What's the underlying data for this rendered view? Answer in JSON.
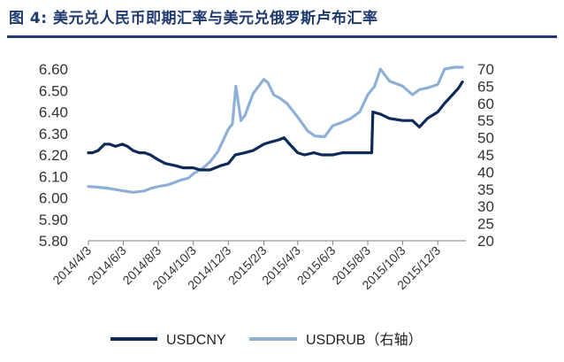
{
  "header": {
    "title": "图 4: 美元兑人民币即期汇率与美元兑俄罗斯卢布汇率"
  },
  "colors": {
    "title": "#1f3a6e",
    "usdcny": "#0e2a59",
    "usdrub": "#8fb0d6"
  },
  "chart_data": {
    "type": "line",
    "title": "",
    "xlabel": "",
    "ylabel": "",
    "y_left": {
      "min": 5.8,
      "max": 6.6,
      "ticks": [
        "5.80",
        "5.90",
        "6.00",
        "6.10",
        "6.20",
        "6.30",
        "6.40",
        "6.50",
        "6.60"
      ]
    },
    "y_right": {
      "min": 20,
      "max": 70,
      "ticks": [
        "20",
        "25",
        "30",
        "35",
        "40",
        "45",
        "50",
        "55",
        "60",
        "65",
        "70"
      ]
    },
    "x_ticks": [
      "2014/4/3",
      "2014/6/3",
      "2014/8/3",
      "2014/10/3",
      "2014/12/3",
      "2015/2/3",
      "2015/4/3",
      "2015/6/3",
      "2015/8/3",
      "2015/10/3",
      "2015/12/3"
    ],
    "legend_position": "bottom",
    "grid": false,
    "series": [
      {
        "name": "USDCNY",
        "axis": "left",
        "points": [
          [
            "2014/4/3",
            6.21
          ],
          [
            "2014/4/10",
            6.21
          ],
          [
            "2014/4/20",
            6.22
          ],
          [
            "2014/5/1",
            6.25
          ],
          [
            "2014/5/10",
            6.25
          ],
          [
            "2014/5/20",
            6.24
          ],
          [
            "2014/6/1",
            6.25
          ],
          [
            "2014/6/10",
            6.24
          ],
          [
            "2014/6/20",
            6.22
          ],
          [
            "2014/7/1",
            6.21
          ],
          [
            "2014/7/10",
            6.21
          ],
          [
            "2014/7/20",
            6.2
          ],
          [
            "2014/8/1",
            6.18
          ],
          [
            "2014/8/15",
            6.16
          ],
          [
            "2014/9/1",
            6.15
          ],
          [
            "2014/9/15",
            6.14
          ],
          [
            "2014/10/3",
            6.14
          ],
          [
            "2014/10/15",
            6.13
          ],
          [
            "2014/11/1",
            6.13
          ],
          [
            "2014/11/10",
            6.14
          ],
          [
            "2014/11/20",
            6.15
          ],
          [
            "2014/12/3",
            6.16
          ],
          [
            "2014/12/15",
            6.2
          ],
          [
            "2015/1/1",
            6.21
          ],
          [
            "2015/1/15",
            6.22
          ],
          [
            "2015/2/3",
            6.25
          ],
          [
            "2015/2/15",
            6.26
          ],
          [
            "2015/3/1",
            6.27
          ],
          [
            "2015/3/10",
            6.28
          ],
          [
            "2015/3/20",
            6.25
          ],
          [
            "2015/4/3",
            6.21
          ],
          [
            "2015/4/15",
            6.2
          ],
          [
            "2015/5/1",
            6.21
          ],
          [
            "2015/5/15",
            6.2
          ],
          [
            "2015/6/3",
            6.2
          ],
          [
            "2015/6/20",
            6.21
          ],
          [
            "2015/7/3",
            6.21
          ],
          [
            "2015/7/20",
            6.21
          ],
          [
            "2015/8/3",
            6.21
          ],
          [
            "2015/8/10",
            6.21
          ],
          [
            "2015/8/12",
            6.4
          ],
          [
            "2015/8/25",
            6.39
          ],
          [
            "2015/9/10",
            6.37
          ],
          [
            "2015/10/3",
            6.36
          ],
          [
            "2015/10/20",
            6.36
          ],
          [
            "2015/11/1",
            6.33
          ],
          [
            "2015/11/15",
            6.37
          ],
          [
            "2015/12/3",
            6.4
          ],
          [
            "2015/12/15",
            6.44
          ],
          [
            "2016/1/1",
            6.49
          ],
          [
            "2016/1/8",
            6.51
          ],
          [
            "2016/1/15",
            6.54
          ]
        ]
      },
      {
        "name": "USDRUB（右轴）",
        "axis": "right",
        "points": [
          [
            "2014/4/3",
            35.8
          ],
          [
            "2014/4/20",
            35.6
          ],
          [
            "2014/5/10",
            35.2
          ],
          [
            "2014/6/3",
            34.5
          ],
          [
            "2014/6/20",
            34.1
          ],
          [
            "2014/7/10",
            34.5
          ],
          [
            "2014/7/20",
            35.2
          ],
          [
            "2014/8/3",
            35.8
          ],
          [
            "2014/8/20",
            36.3
          ],
          [
            "2014/9/10",
            37.6
          ],
          [
            "2014/9/25",
            38.3
          ],
          [
            "2014/10/3",
            39.5
          ],
          [
            "2014/10/20",
            41.2
          ],
          [
            "2014/11/1",
            43.0
          ],
          [
            "2014/11/15",
            46.0
          ],
          [
            "2014/12/3",
            52.5
          ],
          [
            "2014/12/10",
            54.0
          ],
          [
            "2014/12/16",
            65.0
          ],
          [
            "2014/12/25",
            55.0
          ],
          [
            "2015/1/1",
            56.5
          ],
          [
            "2015/1/15",
            62.8
          ],
          [
            "2015/2/3",
            67.0
          ],
          [
            "2015/2/10",
            66.0
          ],
          [
            "2015/2/20",
            62.5
          ],
          [
            "2015/3/3",
            61.5
          ],
          [
            "2015/3/15",
            60.0
          ],
          [
            "2015/4/3",
            56.0
          ],
          [
            "2015/4/20",
            52.0
          ],
          [
            "2015/5/3",
            50.5
          ],
          [
            "2015/5/20",
            50.3
          ],
          [
            "2015/6/3",
            53.5
          ],
          [
            "2015/6/20",
            54.5
          ],
          [
            "2015/7/3",
            55.5
          ],
          [
            "2015/7/20",
            57.5
          ],
          [
            "2015/8/3",
            62.5
          ],
          [
            "2015/8/15",
            65.0
          ],
          [
            "2015/8/25",
            70.0
          ],
          [
            "2015/9/10",
            66.5
          ],
          [
            "2015/10/3",
            65.0
          ],
          [
            "2015/10/20",
            62.5
          ],
          [
            "2015/11/1",
            64.0
          ],
          [
            "2015/11/15",
            64.5
          ],
          [
            "2015/12/3",
            65.5
          ],
          [
            "2015/12/15",
            70.0
          ],
          [
            "2016/1/1",
            71.5
          ],
          [
            "2016/1/15",
            73.5
          ]
        ]
      }
    ]
  }
}
